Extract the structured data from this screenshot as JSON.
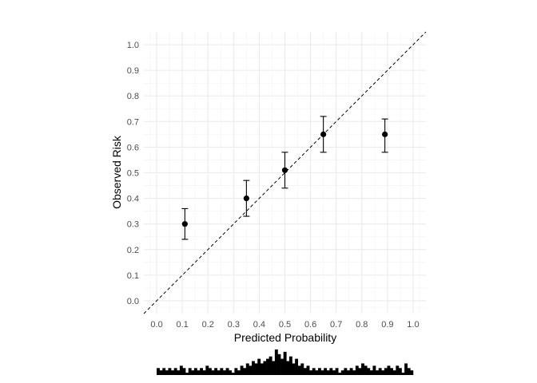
{
  "chart_data": {
    "type": "scatter",
    "subtype": "calibration-plot",
    "title": "",
    "xlabel": "Predicted Probability",
    "ylabel": "Observed Risk",
    "xlim": [
      -0.05,
      1.05
    ],
    "ylim": [
      -0.05,
      1.05
    ],
    "xticks": [
      "0.0",
      "0.1",
      "0.2",
      "0.3",
      "0.4",
      "0.5",
      "0.6",
      "0.7",
      "0.8",
      "0.9",
      "1.0"
    ],
    "yticks": [
      "0.0",
      "0.1",
      "0.2",
      "0.3",
      "0.4",
      "0.5",
      "0.6",
      "0.7",
      "0.8",
      "0.9",
      "1.0"
    ],
    "grid": true,
    "reference_line": {
      "style": "dashed",
      "from": [
        0,
        0
      ],
      "to": [
        1,
        1
      ]
    },
    "points": [
      {
        "x": 0.11,
        "y": 0.3,
        "ymin": 0.24,
        "ymax": 0.36
      },
      {
        "x": 0.35,
        "y": 0.4,
        "ymin": 0.33,
        "ymax": 0.47
      },
      {
        "x": 0.5,
        "y": 0.51,
        "ymin": 0.44,
        "ymax": 0.58
      },
      {
        "x": 0.65,
        "y": 0.65,
        "ymin": 0.58,
        "ymax": 0.72
      },
      {
        "x": 0.89,
        "y": 0.65,
        "ymin": 0.58,
        "ymax": 0.71
      }
    ],
    "histogram": {
      "x_range": [
        0.0,
        1.0
      ],
      "counts": [
        3,
        2,
        3,
        2,
        3,
        2,
        3,
        2,
        4,
        3,
        1,
        3,
        2,
        3,
        2,
        3,
        2,
        4,
        3,
        2,
        3,
        2,
        3,
        2,
        3,
        2,
        1,
        3,
        2,
        4,
        3,
        5,
        4,
        6,
        5,
        7,
        5,
        6,
        7,
        8,
        6,
        11,
        9,
        7,
        10,
        6,
        8,
        5,
        7,
        4,
        5,
        3,
        4,
        2,
        3,
        2,
        3,
        2,
        3,
        2,
        3,
        2,
        3,
        1,
        2,
        3,
        2,
        3,
        2,
        4,
        3,
        5,
        4,
        3,
        2,
        4,
        2,
        3,
        2,
        3,
        4,
        3,
        2,
        4,
        3,
        1,
        5,
        3,
        2
      ]
    }
  }
}
